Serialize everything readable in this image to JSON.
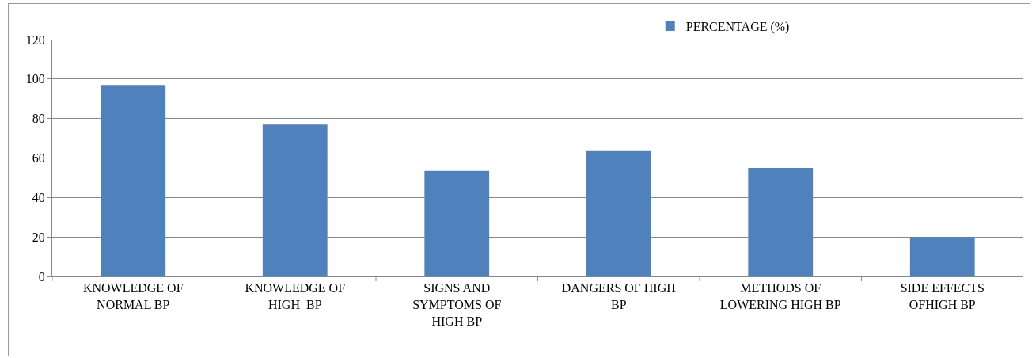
{
  "chart_data": {
    "type": "bar",
    "categories": [
      "KNOWLEDGE OF\nNORMAL BP",
      "KNOWLEDGE OF\nHIGH  BP",
      "SIGNS AND\nSYMPTOMS OF\nHIGH BP",
      "DANGERS OF HIGH\nBP",
      "METHODS OF\nLOWERING HIGH BP",
      "SIDE EFFECTS\nOFHIGH BP"
    ],
    "series": [
      {
        "name": "PERCENTAGE (%)",
        "color": "#4f81bd",
        "values": [
          97,
          77,
          53.5,
          63.5,
          55,
          20
        ]
      }
    ],
    "ylim": [
      0,
      120
    ],
    "yticks": [
      0,
      20,
      40,
      60,
      80,
      100,
      120
    ],
    "grid": "y",
    "legend": "top right"
  }
}
